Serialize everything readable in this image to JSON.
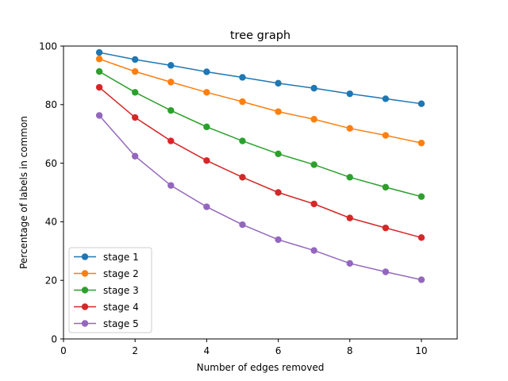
{
  "chart_data": {
    "type": "line",
    "title": "tree graph",
    "xlabel": "Number of edges removed",
    "ylabel": "Percentage of labels in common",
    "xlim": [
      0,
      11
    ],
    "ylim": [
      0,
      100
    ],
    "xticks": [
      0,
      2,
      4,
      6,
      8,
      10
    ],
    "yticks": [
      0,
      20,
      40,
      60,
      80,
      100
    ],
    "grid": false,
    "legend_position": "lower-left",
    "x": [
      1,
      2,
      3,
      4,
      5,
      6,
      7,
      8,
      9,
      10
    ],
    "series": [
      {
        "name": "stage 1",
        "color": "#1f77b4",
        "values": [
          97.8,
          95.4,
          93.4,
          91.2,
          89.3,
          87.3,
          85.6,
          83.7,
          82.0,
          80.3
        ]
      },
      {
        "name": "stage 2",
        "color": "#ff7f0e",
        "values": [
          95.6,
          91.3,
          87.7,
          84.2,
          81.0,
          77.6,
          75.0,
          71.9,
          69.5,
          66.9
        ]
      },
      {
        "name": "stage 3",
        "color": "#2ca02c",
        "values": [
          91.3,
          84.2,
          78.0,
          72.4,
          67.6,
          63.2,
          59.5,
          55.2,
          51.8,
          48.6
        ]
      },
      {
        "name": "stage 4",
        "color": "#d62728",
        "values": [
          85.9,
          75.6,
          67.6,
          60.9,
          55.2,
          50.0,
          46.1,
          41.3,
          37.9,
          34.6
        ]
      },
      {
        "name": "stage 5",
        "color": "#9467bd",
        "values": [
          76.3,
          62.4,
          52.4,
          45.1,
          39.0,
          33.9,
          30.2,
          25.8,
          22.9,
          20.2
        ]
      }
    ]
  }
}
